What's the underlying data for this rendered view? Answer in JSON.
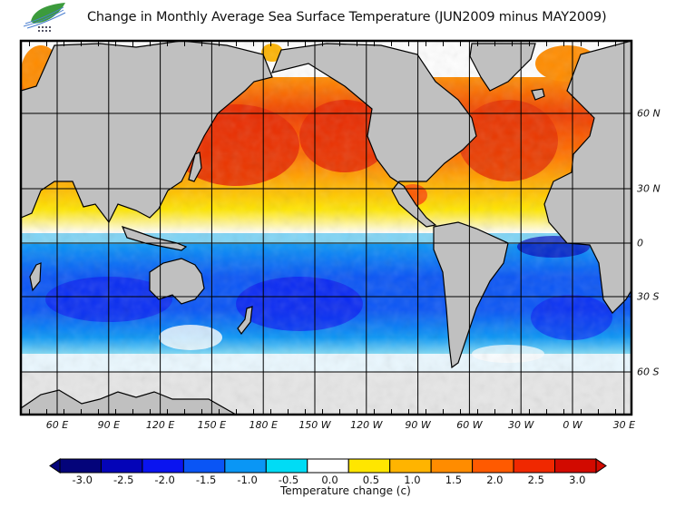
{
  "header": {
    "title": "Change in Monthly Average Sea Surface Temperature (JUN2009 minus MAY2009)",
    "logo_icon": "leaf-wave-logo-icon"
  },
  "map": {
    "projection": "cylindrical",
    "longitude_labels": [
      "60 E",
      "90 E",
      "120 E",
      "150 E",
      "180 E",
      "150 W",
      "120 W",
      "90 W",
      "60 W",
      "30 W",
      "0 W",
      "30 E"
    ],
    "latitude_labels": [
      "60 N",
      "30 N",
      "0",
      "30 S",
      "60 S"
    ],
    "land_color": "#c0c0c0",
    "ice_color": "#e6e6e6"
  },
  "legend": {
    "title": "Temperature change  (c)",
    "tick_labels": [
      "-3.0",
      "-2.5",
      "-2.0",
      "-1.5",
      "-1.0",
      "-0.5",
      "0.0",
      "0.5",
      "1.0",
      "1.5",
      "2.0",
      "2.5",
      "3.0"
    ],
    "colors": [
      "#04047a",
      "#0404b8",
      "#0a14f0",
      "#0a55f5",
      "#0a96f5",
      "#00dcf5",
      "#ffffff",
      "#ffe600",
      "#ffb400",
      "#ff8c00",
      "#ff5a00",
      "#f02800",
      "#d20a00"
    ],
    "under_color": "#04047a",
    "over_color": "#d20a00"
  }
}
